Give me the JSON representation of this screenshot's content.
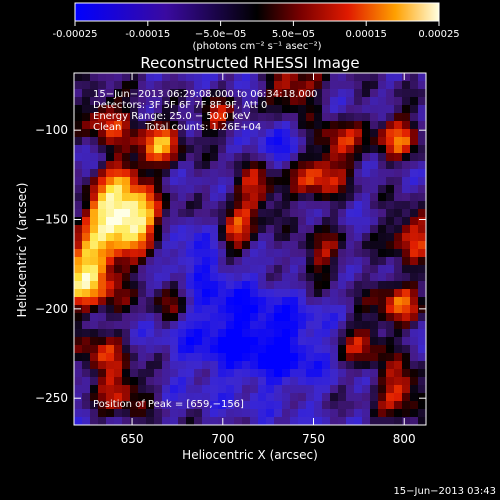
{
  "chart_data": {
    "type": "heatmap",
    "title": "Reconstructed RHESSI Image",
    "xlabel": "Heliocentric X (arcsec)",
    "ylabel": "Heliocentric Y (arcsec)",
    "xlim": [
      618,
      812
    ],
    "ylim": [
      -265,
      -68
    ],
    "x_ticks": [
      650,
      700,
      750,
      800
    ],
    "y_ticks": [
      -100,
      -150,
      -200,
      -250
    ],
    "x_tick_labels": [
      "650",
      "700",
      "750",
      "800"
    ],
    "y_tick_labels": [
      "−100",
      "−150",
      "−200",
      "−250"
    ],
    "colorbar": {
      "range": [
        -0.00025,
        0.00025
      ],
      "ticks": [
        -0.00025,
        -0.00015,
        -5e-05,
        5e-05,
        0.00015,
        0.00025
      ],
      "tick_labels": [
        "-0.00025",
        "-0.00015",
        "−5.0e−05",
        "5.0e−05",
        "0.00015",
        "0.00025"
      ],
      "units": "(photons cm⁻² s⁻¹ asec⁻²)"
    },
    "annotations": {
      "time_range": "15−Jun−2013 06:29:08.000 to 06:34:18.000",
      "detectors": "Detectors: 3F 5F 6F 7F 8F 9F, Att 0",
      "energy_range": "Energy Range: 25.0 − 50.0 keV",
      "method": "Clean",
      "total_counts": "Total counts: 1.26E+04",
      "peak_position": "Position of Peak = [659,−156]"
    },
    "peak": [
      659,
      -156
    ],
    "footer_timestamp": "15−Jun−2013 03:43"
  }
}
